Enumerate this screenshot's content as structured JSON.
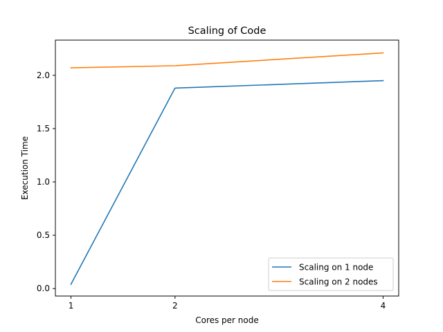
{
  "chart_data": {
    "type": "line",
    "title": "Scaling of Code",
    "xlabel": "Cores per node",
    "ylabel": "Execution Time",
    "x": [
      1,
      2,
      4
    ],
    "xticks": [
      "1",
      "2",
      "4"
    ],
    "xlim": [
      0.85,
      4.15
    ],
    "yticks": [
      "0.0",
      "0.5",
      "1.0",
      "1.5",
      "2.0"
    ],
    "ylim": [
      -0.07,
      2.33
    ],
    "grid": false,
    "legend_position": "lower right",
    "series": [
      {
        "name": "Scaling on 1 node",
        "values": [
          0.04,
          1.88,
          1.95
        ],
        "color": "#1f77b4"
      },
      {
        "name": "Scaling on 2 nodes",
        "values": [
          2.07,
          2.09,
          2.21
        ],
        "color": "#ff7f0e"
      }
    ]
  }
}
